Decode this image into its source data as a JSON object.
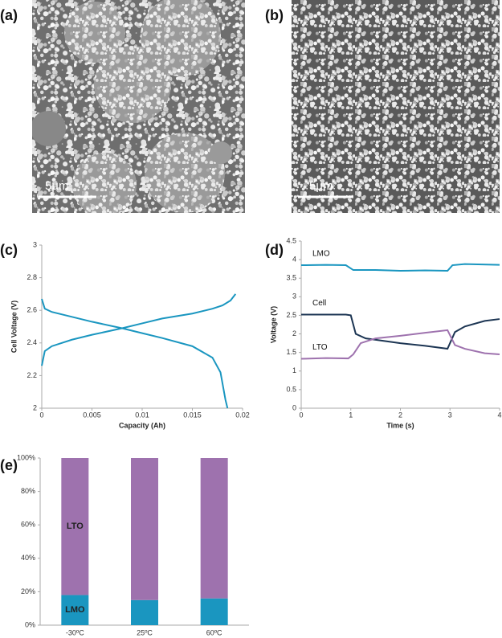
{
  "images": [
    {
      "label": "(a)",
      "scale_bar": "5µm"
    },
    {
      "label": "(b)",
      "scale_bar": "5µm"
    }
  ],
  "chart_data": [
    {
      "type": "line",
      "panel": "(c)",
      "x_label": "Capacity (Ah)",
      "y_label": "Cell Voltage (V)",
      "xlim": [
        0,
        0.02
      ],
      "xticks": [
        0,
        0.005,
        0.01,
        0.015,
        0.02
      ],
      "ylim": [
        2,
        3
      ],
      "yticks": [
        2,
        2.2,
        2.4,
        2.6,
        2.8,
        3
      ],
      "series": [
        {
          "color": "#1a96c0",
          "x": [
            0,
            0.0003,
            0.001,
            0.003,
            0.005,
            0.008,
            0.01,
            0.012,
            0.015,
            0.017,
            0.018,
            0.0188,
            0.0193
          ],
          "values": [
            2.26,
            2.35,
            2.38,
            2.42,
            2.45,
            2.49,
            2.52,
            2.55,
            2.58,
            2.61,
            2.63,
            2.66,
            2.7
          ]
        },
        {
          "color": "#1a96c0",
          "x": [
            0,
            0.0003,
            0.001,
            0.003,
            0.005,
            0.008,
            0.01,
            0.012,
            0.015,
            0.017,
            0.0178,
            0.0183,
            0.0185
          ],
          "values": [
            2.67,
            2.61,
            2.59,
            2.56,
            2.53,
            2.49,
            2.46,
            2.43,
            2.38,
            2.31,
            2.22,
            2.05,
            2.0
          ]
        }
      ]
    },
    {
      "type": "line",
      "panel": "(d)",
      "x_label": "Time (s)",
      "y_label": "Voltage (V)",
      "xlim": [
        0,
        4
      ],
      "xticks": [
        0,
        1,
        2,
        3,
        4
      ],
      "ylim": [
        0,
        4.5
      ],
      "yticks": [
        0,
        0.5,
        1,
        1.5,
        2,
        2.5,
        3,
        3.5,
        4,
        4.5
      ],
      "series": [
        {
          "name": "LMO",
          "color": "#1a96c0",
          "x": [
            0,
            0.5,
            0.9,
            1.05,
            1.5,
            2,
            2.5,
            2.95,
            3.05,
            3.3,
            4
          ],
          "values": [
            3.85,
            3.86,
            3.85,
            3.72,
            3.72,
            3.7,
            3.71,
            3.7,
            3.85,
            3.88,
            3.86
          ]
        },
        {
          "name": "Cell",
          "color": "#1c3553",
          "x": [
            0,
            0.9,
            1.0,
            1.1,
            1.3,
            2,
            2.5,
            2.95,
            3.1,
            3.3,
            3.7,
            4
          ],
          "values": [
            2.52,
            2.52,
            2.5,
            2.0,
            1.88,
            1.75,
            1.68,
            1.6,
            2.05,
            2.2,
            2.35,
            2.4
          ]
        },
        {
          "name": "LTO",
          "color": "#9e72ae",
          "x": [
            0,
            0.5,
            0.95,
            1.05,
            1.2,
            1.5,
            2,
            2.5,
            2.95,
            3.1,
            3.3,
            3.7,
            4
          ],
          "values": [
            1.33,
            1.35,
            1.34,
            1.45,
            1.75,
            1.88,
            1.95,
            2.03,
            2.1,
            1.7,
            1.6,
            1.48,
            1.45
          ]
        }
      ]
    },
    {
      "type": "bar",
      "panel": "(e)",
      "stacked": true,
      "categories": [
        "-30ºC",
        "25ºC",
        "60ºC"
      ],
      "ylim": [
        0,
        100
      ],
      "yticks": [
        {
          "value": 0,
          "label": "0%"
        },
        {
          "value": 20,
          "label": "20%"
        },
        {
          "value": 40,
          "label": "40%"
        },
        {
          "value": 60,
          "label": "60%"
        },
        {
          "value": 80,
          "label": "80%"
        },
        {
          "value": 100,
          "label": "100%"
        }
      ],
      "series": [
        {
          "name": "LMO",
          "color": "#1a96c0",
          "values": [
            18,
            15,
            16
          ]
        },
        {
          "name": "LTO",
          "color": "#9e72ae",
          "values": [
            82,
            85,
            84
          ]
        }
      ]
    }
  ]
}
